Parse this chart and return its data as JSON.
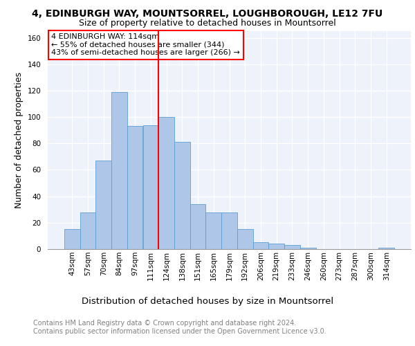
{
  "title1": "4, EDINBURGH WAY, MOUNTSORREL, LOUGHBOROUGH, LE12 7FU",
  "title2": "Size of property relative to detached houses in Mountsorrel",
  "xlabel": "Distribution of detached houses by size in Mountsorrel",
  "ylabel": "Number of detached properties",
  "footnote1": "Contains HM Land Registry data © Crown copyright and database right 2024.",
  "footnote2": "Contains public sector information licensed under the Open Government Licence v3.0.",
  "categories": [
    "43sqm",
    "57sqm",
    "70sqm",
    "84sqm",
    "97sqm",
    "111sqm",
    "124sqm",
    "138sqm",
    "151sqm",
    "165sqm",
    "179sqm",
    "192sqm",
    "206sqm",
    "219sqm",
    "233sqm",
    "246sqm",
    "260sqm",
    "273sqm",
    "287sqm",
    "300sqm",
    "314sqm"
  ],
  "values": [
    15,
    28,
    67,
    119,
    93,
    94,
    100,
    81,
    34,
    28,
    28,
    15,
    5,
    4,
    3,
    1,
    0,
    0,
    0,
    0,
    1
  ],
  "bar_color": "#aec6e8",
  "bar_edge_color": "#5a9fd4",
  "property_line_color": "red",
  "annotation_text": "4 EDINBURGH WAY: 114sqm\n← 55% of detached houses are smaller (344)\n43% of semi-detached houses are larger (266) →",
  "annotation_box_color": "white",
  "annotation_box_edge_color": "red",
  "ylim": [
    0,
    165
  ],
  "background_color": "#eef2fa",
  "grid_color": "white",
  "title1_fontsize": 10,
  "title2_fontsize": 9,
  "axis_label_fontsize": 9,
  "tick_fontsize": 7.5,
  "footnote_fontsize": 7,
  "annotation_fontsize": 8
}
